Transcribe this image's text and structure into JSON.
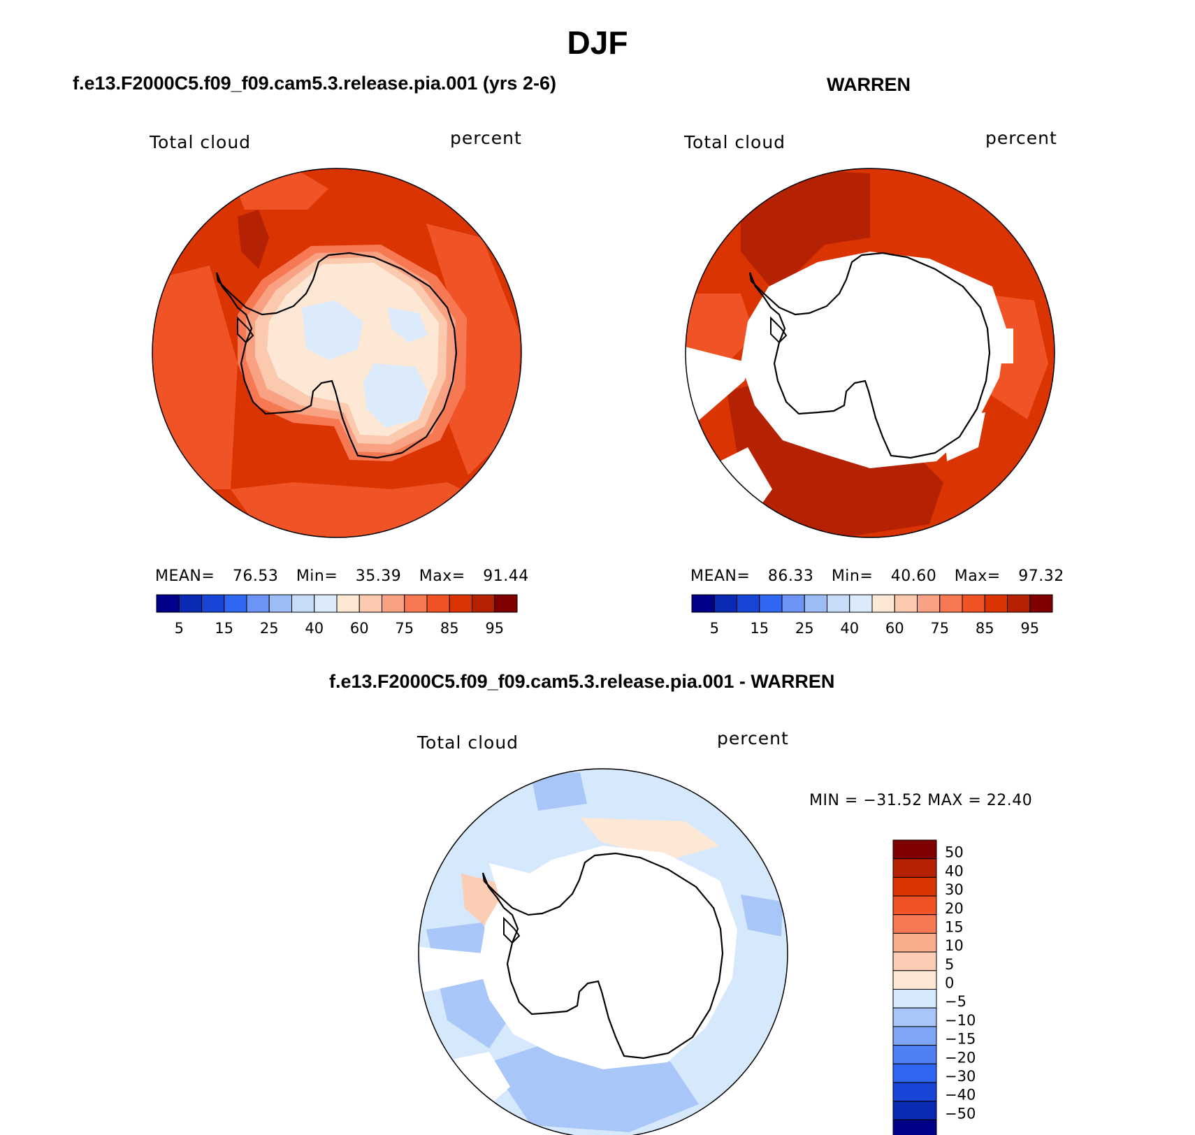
{
  "page": {
    "title": "DJF",
    "left_title": "f.e13.F2000C5.f09_f09.cam5.3.release.pia.001 (yrs 2-6)",
    "right_title": "WARREN",
    "bottom_title": "f.e13.F2000C5.f09_f09.cam5.3.release.pia.001 - WARREN"
  },
  "chart_data": [
    {
      "type": "heatmap",
      "projection": "south-polar-stereographic",
      "panel": "model",
      "title": "f.e13.F2000C5.f09_f09.cam5.3.release.pia.001 (yrs 2-6)",
      "variable": "Total cloud",
      "units": "percent",
      "stats": {
        "mean_label": "MEAN=",
        "mean": "76.53",
        "min_label": "Min=",
        "min": "35.39",
        "max_label": "Max=",
        "max": "91.44"
      },
      "colorbar": {
        "orientation": "horizontal",
        "levels": [
          5,
          10,
          15,
          20,
          25,
          30,
          40,
          50,
          60,
          70,
          75,
          80,
          85,
          90,
          95
        ],
        "tick_labels": [
          "5",
          "15",
          "25",
          "40",
          "60",
          "75",
          "85",
          "95"
        ],
        "colors": [
          "#00008b",
          "#0a2ab4",
          "#1745d5",
          "#2f66f2",
          "#6d95f5",
          "#9dbdf7",
          "#c7dcf9",
          "#dcebfc",
          "#fde7d5",
          "#fbc9ae",
          "#f8a283",
          "#f77953",
          "#f05426",
          "#db3403",
          "#b52103",
          "#7f0000"
        ]
      }
    },
    {
      "type": "heatmap",
      "projection": "south-polar-stereographic",
      "panel": "observations",
      "title": "WARREN",
      "variable": "Total cloud",
      "units": "percent",
      "stats": {
        "mean_label": "MEAN=",
        "mean": "86.33",
        "min_label": "Min=",
        "min": "40.60",
        "max_label": "Max=",
        "max": "97.32"
      },
      "colorbar": {
        "orientation": "horizontal",
        "levels": [
          5,
          10,
          15,
          20,
          25,
          30,
          40,
          50,
          60,
          70,
          75,
          80,
          85,
          90,
          95
        ],
        "tick_labels": [
          "5",
          "15",
          "25",
          "40",
          "60",
          "75",
          "85",
          "95"
        ],
        "colors": [
          "#00008b",
          "#0a2ab4",
          "#1745d5",
          "#2f66f2",
          "#6d95f5",
          "#9dbdf7",
          "#c7dcf9",
          "#dcebfc",
          "#fde7d5",
          "#fbc9ae",
          "#f8a283",
          "#f77953",
          "#f05426",
          "#db3403",
          "#b52103",
          "#7f0000"
        ]
      }
    },
    {
      "type": "heatmap",
      "projection": "south-polar-stereographic",
      "panel": "difference",
      "title": "f.e13.F2000C5.f09_f09.cam5.3.release.pia.001 - WARREN",
      "variable": "Total cloud",
      "units": "percent",
      "stats": {
        "text": "MIN = −31.52 MAX =   22.40"
      },
      "colorbar": {
        "orientation": "vertical",
        "levels": [
          -50,
          -40,
          -30,
          -20,
          -15,
          -10,
          -5,
          0,
          5,
          10,
          15,
          20,
          30,
          40,
          50
        ],
        "tick_labels": [
          "50",
          "40",
          "30",
          "20",
          "15",
          "10",
          "5",
          "0",
          "−5",
          "−10",
          "−15",
          "−20",
          "−30",
          "−40",
          "−50"
        ],
        "colors": [
          "#00008b",
          "#0a2ab4",
          "#1745d5",
          "#2f66f2",
          "#4f80f4",
          "#7ea5f6",
          "#a9c6f8",
          "#d6e8fc",
          "#fde7d5",
          "#fbcdb4",
          "#f9ad8c",
          "#f77953",
          "#f05426",
          "#db3403",
          "#b52103",
          "#7f0000"
        ]
      }
    }
  ]
}
